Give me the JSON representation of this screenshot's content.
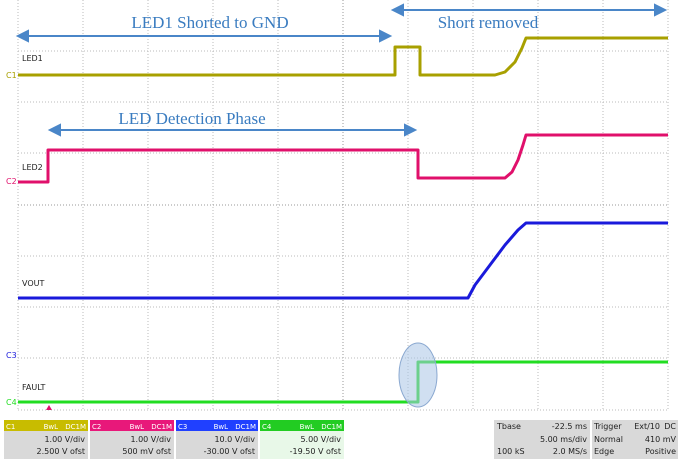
{
  "annotations": {
    "led1_shorted": "LED1 Shorted to GND",
    "short_removed": "Short removed",
    "detection_phase": "LED Detection Phase"
  },
  "traces": [
    {
      "label": "LED1",
      "marker": "C1"
    },
    {
      "label": "LED2",
      "marker": "C2"
    },
    {
      "label": "VOUT",
      "marker": "C3"
    },
    {
      "label": "FAULT",
      "marker": "C4"
    }
  ],
  "channels": [
    {
      "name": "C1",
      "bw": "BwL",
      "coupling": "DC1M",
      "scale": "1.00 V/div",
      "offset": "2.500 V ofst"
    },
    {
      "name": "C2",
      "bw": "BwL",
      "coupling": "DC1M",
      "scale": "1.00 V/div",
      "offset": "500 mV ofst"
    },
    {
      "name": "C3",
      "bw": "BwL",
      "coupling": "DC1M",
      "scale": "10.0 V/div",
      "offset": "-30.00 V ofst"
    },
    {
      "name": "C4",
      "bw": "BwL",
      "coupling": "DC1M",
      "scale": "5.00 V/div",
      "offset": "-19.50 V ofst"
    }
  ],
  "timebase": {
    "label": "Tbase",
    "delay": "-22.5 ms",
    "scale": "5.00 ms/div",
    "samples": "100 kS",
    "rate": "2.0 MS/s"
  },
  "trigger": {
    "label": "Trigger",
    "source": "Ext/10",
    "coupling": "DC",
    "mode": "Normal",
    "level": "410 mV",
    "type": "Edge",
    "slope": "Positive"
  }
}
